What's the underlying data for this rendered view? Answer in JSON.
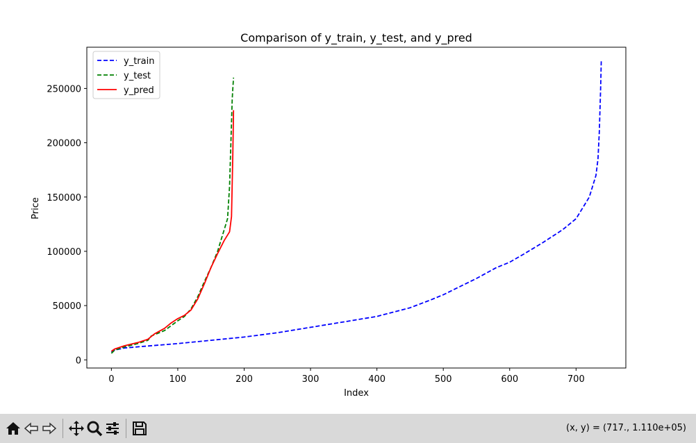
{
  "toolbar": {
    "buttons": [
      {
        "icon": "home-icon"
      },
      {
        "icon": "back-arrow-icon"
      },
      {
        "icon": "forward-arrow-icon"
      },
      {
        "icon": "pan-icon"
      },
      {
        "icon": "zoom-icon"
      },
      {
        "icon": "configure-subplots-icon"
      },
      {
        "icon": "save-icon"
      }
    ],
    "coords": "(x, y) = (717., 1.110e+05)"
  },
  "chart_data": {
    "type": "line",
    "title": "Comparison of y_train, y_test, and y_pred",
    "xlabel": "Index",
    "ylabel": "Price",
    "xlim": [
      -37,
      775
    ],
    "ylim": [
      -7500,
      288000
    ],
    "xticks": [
      0,
      100,
      200,
      300,
      400,
      500,
      600,
      700
    ],
    "yticks": [
      0,
      50000,
      100000,
      150000,
      200000,
      250000
    ],
    "legend_position": "upper-left",
    "series": [
      {
        "name": "y_train",
        "color": "#0000ff",
        "style": "dashed",
        "x": [
          0,
          5,
          20,
          50,
          100,
          150,
          200,
          250,
          300,
          350,
          400,
          450,
          480,
          500,
          520,
          550,
          580,
          600,
          620,
          650,
          680,
          700,
          710,
          720,
          725,
          730,
          733,
          735,
          737,
          738
        ],
        "y": [
          7000,
          9000,
          11000,
          12500,
          15000,
          18000,
          21000,
          25000,
          30000,
          35000,
          40000,
          48000,
          55000,
          60000,
          66000,
          75000,
          85000,
          90000,
          97000,
          108000,
          120000,
          130000,
          140000,
          150000,
          160000,
          170000,
          185000,
          210000,
          250000,
          275000
        ]
      },
      {
        "name": "y_test",
        "color": "#008000",
        "style": "dashed",
        "x": [
          0,
          5,
          20,
          40,
          55,
          60,
          80,
          100,
          110,
          120,
          130,
          140,
          150,
          160,
          165,
          170,
          175,
          178,
          180,
          182,
          183,
          184
        ],
        "y": [
          6000,
          9000,
          12000,
          15000,
          18000,
          22000,
          27000,
          36000,
          40000,
          47000,
          58000,
          72000,
          85000,
          100000,
          110000,
          120000,
          130000,
          160000,
          200000,
          240000,
          250000,
          260000
        ]
      },
      {
        "name": "y_pred",
        "color": "#ff0000",
        "style": "solid",
        "x": [
          0,
          5,
          20,
          40,
          55,
          65,
          80,
          90,
          100,
          110,
          120,
          130,
          140,
          150,
          160,
          170,
          178,
          181,
          183,
          184
        ],
        "y": [
          8000,
          10000,
          13000,
          16000,
          19000,
          24000,
          29000,
          34000,
          38000,
          41000,
          46000,
          56000,
          70000,
          85000,
          98000,
          110000,
          118000,
          132000,
          190000,
          230000
        ]
      }
    ]
  }
}
